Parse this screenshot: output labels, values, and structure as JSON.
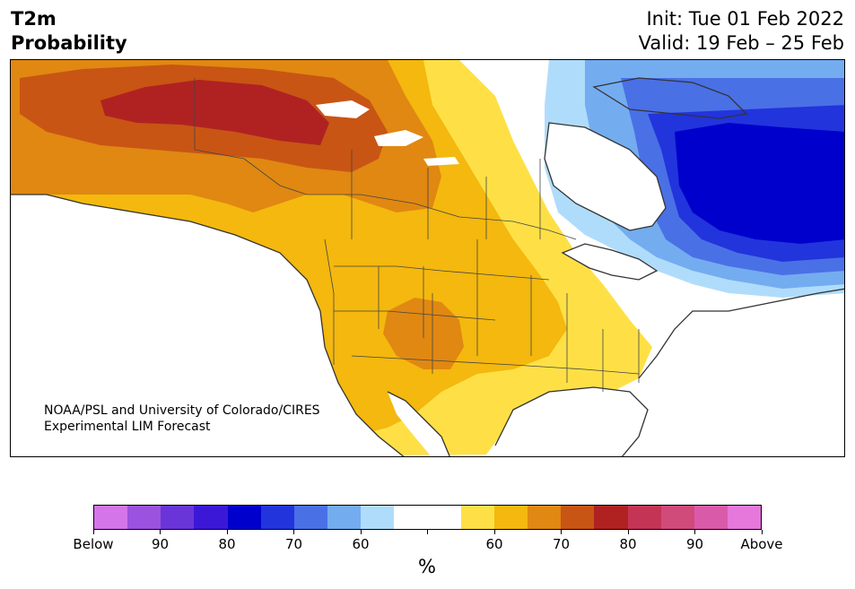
{
  "header": {
    "variable": "T2m",
    "product": "Probability",
    "init": "Init: Tue 01 Feb 2022",
    "valid": "Valid: 19 Feb – 25 Feb"
  },
  "credit": {
    "line1": "NOAA/PSL and University of Colorado/CIRES",
    "line2": "Experimental LIM Forecast"
  },
  "colorbar": {
    "colors": [
      "#d475ea",
      "#9b52de",
      "#6a35d8",
      "#3b18d8",
      "#0000cc",
      "#2234dc",
      "#4a70e6",
      "#74acf0",
      "#b0dcfc",
      "#ffffff",
      "#ffffff",
      "#fee046",
      "#f4b80e",
      "#e08812",
      "#c85514",
      "#b02222",
      "#c43455",
      "#d04a7a",
      "#da5aaa",
      "#e578da"
    ],
    "tick_labels": [
      "Below",
      "90",
      "80",
      "70",
      "60",
      "",
      "60",
      "70",
      "80",
      "90",
      "Above"
    ],
    "unit": "%"
  },
  "map": {
    "region": "North America",
    "legend_colors": {
      "above_90": "#b02222",
      "above_80": "#c85514",
      "above_70": "#e08812",
      "above_60": "#f4b80e",
      "above_50": "#fee046",
      "neutral": "#ffffff",
      "below_50": "#b0dcfc",
      "below_60": "#74acf0",
      "below_70": "#4a70e6",
      "below_80": "#2234dc",
      "below_90": "#0000cc"
    }
  }
}
